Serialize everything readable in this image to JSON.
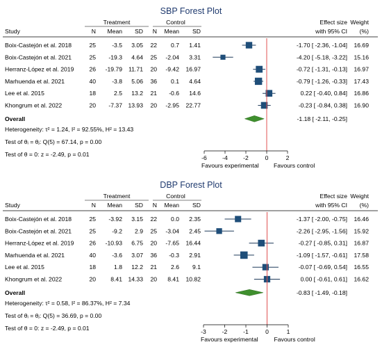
{
  "chart_data": [
    {
      "type": "forest",
      "title": "SBP Forest Plot",
      "columns": {
        "study": "Study",
        "treatment": "Treatment",
        "control": "Control",
        "n": "N",
        "mean": "Mean",
        "sd": "SD",
        "effect_size": "Effect size",
        "ci": "with 95% CI",
        "weight": "Weight",
        "weight_unit": "(%)"
      },
      "studies": [
        {
          "name": "Boix-Castejón et al. 2018",
          "tN": "25",
          "tMean": "-3.5",
          "tSD": "3.05",
          "cN": "22",
          "cMean": "0.7",
          "cSD": "1.41",
          "es": -1.7,
          "lo": -2.36,
          "hi": -1.04,
          "es_text": "-1.70 [ -2.36, -1.04]",
          "weight": 16.69,
          "weight_text": "16.69"
        },
        {
          "name": "Boix-Castejón et al. 2021",
          "tN": "25",
          "tMean": "-19.3",
          "tSD": "4.64",
          "cN": "25",
          "cMean": "-2.04",
          "cSD": "3.31",
          "es": -4.2,
          "lo": -5.18,
          "hi": -3.22,
          "es_text": "-4.20 [ -5.18, -3.22]",
          "weight": 15.16,
          "weight_text": "15.16"
        },
        {
          "name": "Herranz-López et al. 2019",
          "tN": "26",
          "tMean": "-19.79",
          "tSD": "11.71",
          "cN": "20",
          "cMean": "-9.42",
          "cSD": "16.97",
          "es": -0.72,
          "lo": -1.31,
          "hi": -0.13,
          "es_text": "-0.72 [ -1.31, -0.13]",
          "weight": 16.97,
          "weight_text": "16.97"
        },
        {
          "name": "Marhuenda et al. 2021",
          "tN": "40",
          "tMean": "-3.8",
          "tSD": "5.06",
          "cN": "36",
          "cMean": "0.1",
          "cSD": "4.64",
          "es": -0.79,
          "lo": -1.26,
          "hi": -0.33,
          "es_text": "-0.79 [ -1.26, -0.33]",
          "weight": 17.43,
          "weight_text": "17.43"
        },
        {
          "name": "Lee et al. 2015",
          "tN": "18",
          "tMean": "2.5",
          "tSD": "13.2",
          "cN": "21",
          "cMean": "-0.6",
          "cSD": "14.6",
          "es": 0.22,
          "lo": -0.4,
          "hi": 0.84,
          "es_text": "0.22 [ -0.40, 0.84]",
          "weight": 16.86,
          "weight_text": "16.86"
        },
        {
          "name": "Khongrum et al. 2022",
          "tN": "20",
          "tMean": "-7.37",
          "tSD": "13.93",
          "cN": "20",
          "cMean": "-2.95",
          "cSD": "22.77",
          "es": -0.23,
          "lo": -0.84,
          "hi": 0.38,
          "es_text": "-0.23 [ -0.84, 0.38]",
          "weight": 16.9,
          "weight_text": "16.90"
        }
      ],
      "overall": {
        "label": "Overall",
        "es": -1.18,
        "lo": -2.11,
        "hi": -0.25,
        "es_text": "-1.18 [ -2.11, -0.25]"
      },
      "stats": [
        "Heterogeneity: τ² = 1.24, I² = 92.55%, H² = 13.43",
        "Test of θᵢ = θⱼ: Q(5) = 67.14, p = 0.00",
        "Test of θ = 0: z = -2.49, p = 0.01"
      ],
      "xlim": [
        -6,
        2
      ],
      "xticks": [
        -6,
        -4,
        -2,
        0,
        2
      ],
      "xtick_labels": [
        "-6",
        "-4",
        "-2",
        "0",
        "2"
      ],
      "favours_left": "Favours experimental",
      "favours_right": "Favours control",
      "colors": {
        "title": "#1f3a6e",
        "marker": "#1f4e79",
        "diamond": "#3f8f2e",
        "null_line": "#e05050"
      }
    },
    {
      "type": "forest",
      "title": "DBP Forest Plot",
      "columns": {
        "study": "Study",
        "treatment": "Treatment",
        "control": "Control",
        "n": "N",
        "mean": "Mean",
        "sd": "SD",
        "effect_size": "Effect size",
        "ci": "with 95% CI",
        "weight": "Weight",
        "weight_unit": "(%)"
      },
      "studies": [
        {
          "name": "Boix-Castejón et al. 2018",
          "tN": "25",
          "tMean": "-3.92",
          "tSD": "3.15",
          "cN": "22",
          "cMean": "0.0",
          "cSD": "2.35",
          "es": -1.37,
          "lo": -2.0,
          "hi": -0.75,
          "es_text": "-1.37 [ -2.00, -0.75]",
          "weight": 16.46,
          "weight_text": "16.46"
        },
        {
          "name": "Boix-Castejón et al. 2021",
          "tN": "25",
          "tMean": "-9.2",
          "tSD": "2.9",
          "cN": "25",
          "cMean": "-3.04",
          "cSD": "2.45",
          "es": -2.26,
          "lo": -2.95,
          "hi": -1.56,
          "es_text": "-2.26 [ -2.95, -1.56]",
          "weight": 15.92,
          "weight_text": "15.92"
        },
        {
          "name": "Herranz-López et al. 2019",
          "tN": "26",
          "tMean": "-10.93",
          "tSD": "6.75",
          "cN": "20",
          "cMean": "-7.65",
          "cSD": "16.44",
          "es": -0.27,
          "lo": -0.85,
          "hi": 0.31,
          "es_text": "-0.27 [ -0.85, 0.31]",
          "weight": 16.87,
          "weight_text": "16.87"
        },
        {
          "name": "Marhuenda et al. 2021",
          "tN": "40",
          "tMean": "-3.6",
          "tSD": "3.07",
          "cN": "36",
          "cMean": "-0.3",
          "cSD": "2.91",
          "es": -1.09,
          "lo": -1.57,
          "hi": -0.61,
          "es_text": "-1.09 [ -1.57, -0.61]",
          "weight": 17.58,
          "weight_text": "17.58"
        },
        {
          "name": "Lee et al. 2015",
          "tN": "18",
          "tMean": "1.8",
          "tSD": "12.2",
          "cN": "21",
          "cMean": "2.6",
          "cSD": "9.1",
          "es": -0.07,
          "lo": -0.69,
          "hi": 0.54,
          "es_text": "-0.07 [ -0.69, 0.54]",
          "weight": 16.55,
          "weight_text": "16.55"
        },
        {
          "name": "Khongrum et al. 2022",
          "tN": "20",
          "tMean": "8.41",
          "tSD": "14.33",
          "cN": "20",
          "cMean": "8.41",
          "cSD": "10.82",
          "es": 0.0,
          "lo": -0.61,
          "hi": 0.61,
          "es_text": "0.00 [ -0.61, 0.61]",
          "weight": 16.62,
          "weight_text": "16.62"
        }
      ],
      "overall": {
        "label": "Overall",
        "es": -0.83,
        "lo": -1.49,
        "hi": -0.18,
        "es_text": "-0.83 [ -1.49, -0.18]"
      },
      "stats": [
        "Heterogeneity: τ² = 0.58, I² = 86.37%, H² = 7.34",
        "Test of θᵢ = θⱼ: Q(5) = 36.69, p = 0.00",
        "Test of θ = 0: z = -2.49, p = 0.01"
      ],
      "xlim": [
        -3,
        1
      ],
      "xticks": [
        -3,
        -2,
        -1,
        0,
        1
      ],
      "xtick_labels": [
        "-3",
        "-2",
        "-1",
        "0",
        "1"
      ],
      "favours_left": "Favours experimental",
      "favours_right": "Favours control",
      "colors": {
        "title": "#1f3a6e",
        "marker": "#1f4e79",
        "diamond": "#3f8f2e",
        "null_line": "#e05050"
      }
    }
  ]
}
